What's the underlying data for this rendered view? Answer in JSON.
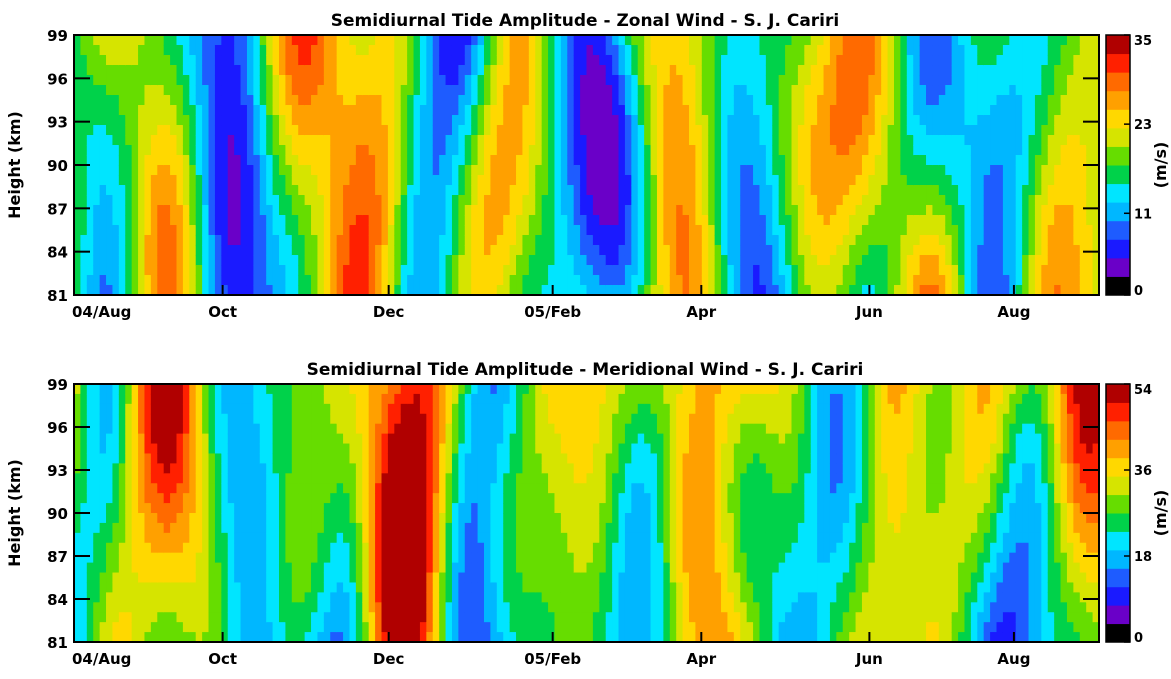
{
  "chart_data": [
    {
      "type": "heatmap",
      "title": "Semidiurnal Tide Amplitude - Zonal Wind - S. J. Cariri",
      "ylabel": "Height (km)",
      "xlabel": "",
      "x_tick_labels": [
        "04/Aug",
        "Oct",
        "Dec",
        "05/Feb",
        "Apr",
        "Jun",
        "Aug"
      ],
      "y_tick_labels": [
        "81",
        "84",
        "87",
        "90",
        "93",
        "96",
        "99"
      ],
      "ylim": [
        81,
        99
      ],
      "colorbar": {
        "label": "(m/s)",
        "ticks": [
          "0",
          "11",
          "23",
          "35"
        ],
        "range": [
          0,
          35
        ]
      },
      "grid": false,
      "value_grid_note": "",
      "seed": 7
    },
    {
      "type": "heatmap",
      "title": "Semidiurnal Tide Amplitude - Meridional Wind - S. J. Cariri",
      "ylabel": "Height (km)",
      "xlabel": "",
      "x_tick_labels": [
        "04/Aug",
        "Oct",
        "Dec",
        "05/Feb",
        "Apr",
        "Jun",
        "Aug"
      ],
      "y_tick_labels": [
        "81",
        "84",
        "87",
        "90",
        "93",
        "96",
        "99"
      ],
      "ylim": [
        81,
        99
      ],
      "colorbar": {
        "label": "(m/s)",
        "ticks": [
          "0",
          "18",
          "36",
          "54"
        ],
        "range": [
          0,
          54
        ]
      },
      "grid": false,
      "value_grid_note": "",
      "seed": 19
    }
  ],
  "colors": {
    "scale": [
      "#000000",
      "#6a00c8",
      "#1a1aff",
      "#1e5cff",
      "#00b7ff",
      "#00e5ff",
      "#00d24a",
      "#66dd00",
      "#d6e400",
      "#ffd800",
      "#ffa000",
      "#ff6a00",
      "#ff2000",
      "#b00000"
    ]
  }
}
